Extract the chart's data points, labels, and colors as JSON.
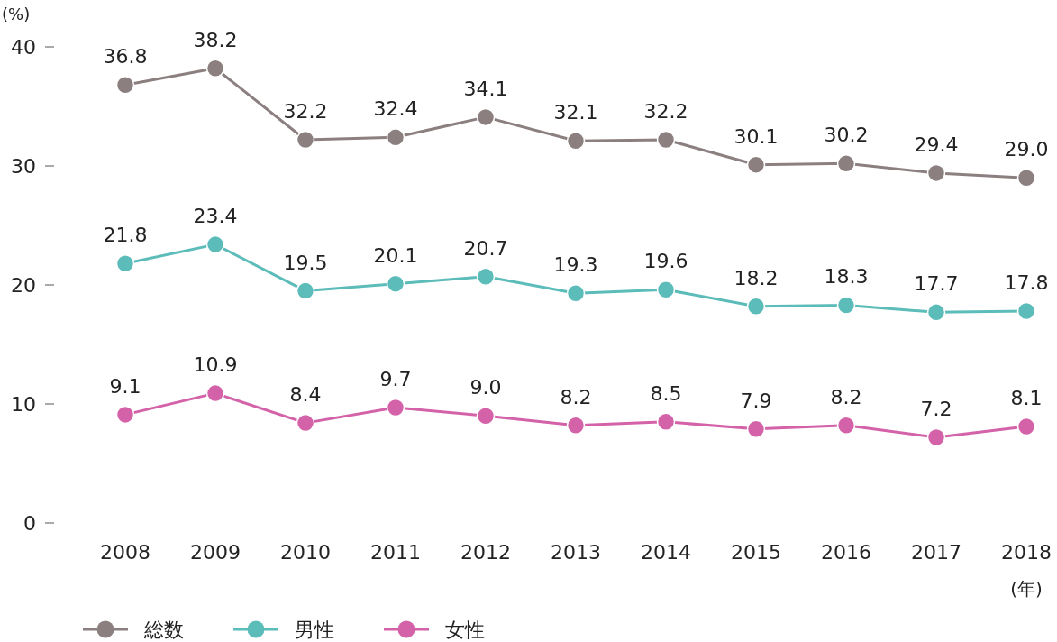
{
  "chart_data": {
    "type": "line",
    "ylabel": "(%)",
    "xlabel": "(年)",
    "categories": [
      "2008",
      "2009",
      "2010",
      "2011",
      "2012",
      "2013",
      "2014",
      "2015",
      "2016",
      "2017",
      "2018"
    ],
    "ylim": [
      0,
      40
    ],
    "yticks": [
      0,
      10,
      20,
      30,
      40
    ],
    "grid": false,
    "legend": "bottom",
    "marker": "circle",
    "line_style": "solid",
    "series": [
      {
        "name": "総数",
        "color": "#8c7f80",
        "values": [
          36.8,
          38.2,
          32.2,
          32.4,
          34.1,
          32.1,
          32.2,
          30.1,
          30.2,
          29.4,
          29.0
        ],
        "value_labels": [
          "36.8",
          "38.2",
          "32.2",
          "32.4",
          "34.1",
          "32.1",
          "32.2",
          "30.1",
          "30.2",
          "29.4",
          "29.0"
        ]
      },
      {
        "name": "男性",
        "color": "#5cbcb9",
        "values": [
          21.8,
          23.4,
          19.5,
          20.1,
          20.7,
          19.3,
          19.6,
          18.2,
          18.3,
          17.7,
          17.8
        ],
        "value_labels": [
          "21.8",
          "23.4",
          "19.5",
          "20.1",
          "20.7",
          "19.3",
          "19.6",
          "18.2",
          "18.3",
          "17.7",
          "17.8"
        ]
      },
      {
        "name": "女性",
        "color": "#d462a8",
        "values": [
          9.1,
          10.9,
          8.4,
          9.7,
          9.0,
          8.2,
          8.5,
          7.9,
          8.2,
          7.2,
          8.1
        ],
        "value_labels": [
          "9.1",
          "10.9",
          "8.4",
          "9.7",
          "9.0",
          "8.2",
          "8.5",
          "7.9",
          "8.2",
          "7.2",
          "8.1"
        ]
      }
    ]
  }
}
